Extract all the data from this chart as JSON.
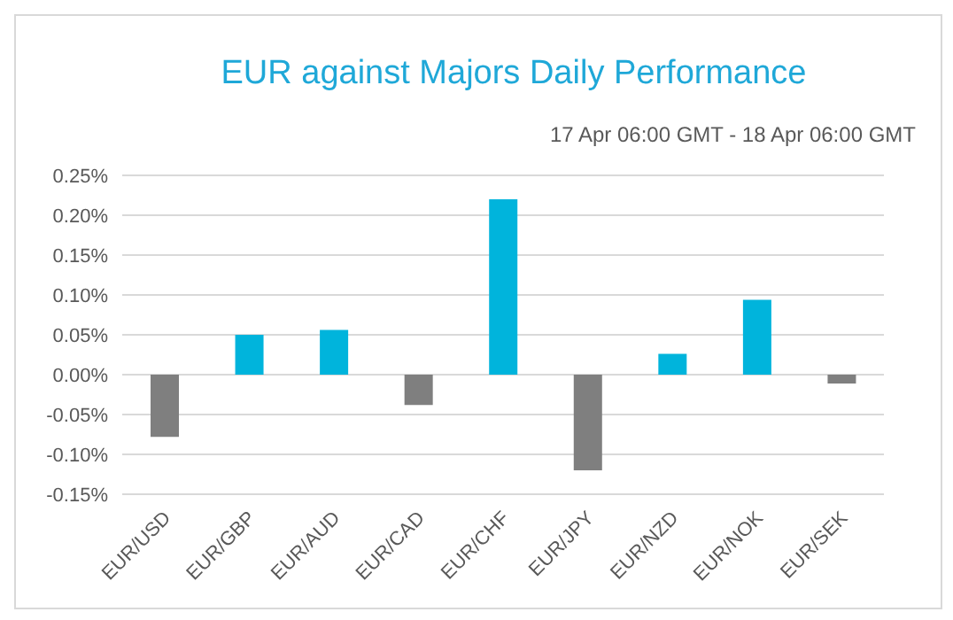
{
  "chart_data": {
    "type": "bar",
    "title": "EUR against Majors Daily Performance",
    "subtitle": "17 Apr 06:00 GMT - 18 Apr 06:00 GMT",
    "categories": [
      "EUR/USD",
      "EUR/GBP",
      "EUR/AUD",
      "EUR/CAD",
      "EUR/CHF",
      "EUR/JPY",
      "EUR/NZD",
      "EUR/NOK",
      "EUR/SEK"
    ],
    "values": [
      -0.078,
      0.05,
      0.056,
      -0.038,
      0.22,
      -0.12,
      0.026,
      0.094,
      -0.011
    ],
    "colors": [
      "#7f7f7f",
      "#00b4dc",
      "#00b4dc",
      "#7f7f7f",
      "#00b4dc",
      "#7f7f7f",
      "#00b4dc",
      "#00b4dc",
      "#7f7f7f"
    ],
    "ylim": [
      -0.15,
      0.25
    ],
    "yticks": [
      {
        "value": -0.15,
        "label": "-0.15%"
      },
      {
        "value": -0.1,
        "label": "-0.10%"
      },
      {
        "value": -0.05,
        "label": "-0.05%"
      },
      {
        "value": 0,
        "label": "0.00%"
      },
      {
        "value": 0.05,
        "label": "0.05%"
      },
      {
        "value": 0.1,
        "label": "0.10%"
      },
      {
        "value": 0.15,
        "label": "0.15%"
      },
      {
        "value": 0.2,
        "label": "0.20%"
      },
      {
        "value": 0.25,
        "label": "0.25%"
      }
    ],
    "grid": "y"
  }
}
